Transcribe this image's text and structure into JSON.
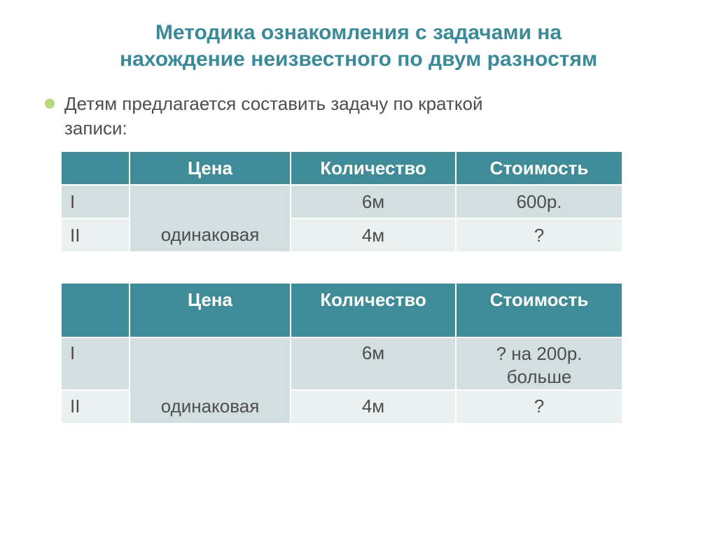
{
  "title_line1": "Методика ознакомления с задачами на",
  "title_line2": "нахождение неизвестного по двум разностям",
  "title_color": "#3b8a99",
  "title_fontsize": 30,
  "bullet_text_line1": "Детям предлагается составить задачу по краткой",
  "bullet_text_line2": "записи:",
  "bullet_color": "#b9d77b",
  "body_color": "#4d4d4d",
  "body_fontsize": 26,
  "table_header_bg": "#3f8b97",
  "table_header_fg": "#ffffff",
  "table_row_odd_bg": "#d3dee1",
  "table_row_even_bg": "#ebf0f1",
  "columns": {
    "c0": 98,
    "c1": 230,
    "c2": 236,
    "c3": 238
  },
  "row_heights": {
    "header1": 48,
    "body": 48,
    "gap": 42,
    "header2": 78
  },
  "header": {
    "price": "Цена",
    "qty": "Количество",
    "cost": "Стоимость"
  },
  "t1": {
    "r1_label": "I",
    "r1_qty": "6м",
    "r1_cost": "600р.",
    "price_shared": "одинаковая",
    "r2_label": "II",
    "r2_qty": "4м",
    "r2_cost": "?"
  },
  "t2": {
    "r1_label": "I",
    "r1_qty": "6м",
    "r1_cost_l1": "? на 200р.",
    "r1_cost_l2": "больше",
    "price_shared": "одинаковая",
    "r2_label": "II",
    "r2_qty": "4м",
    "r2_cost": "?"
  }
}
